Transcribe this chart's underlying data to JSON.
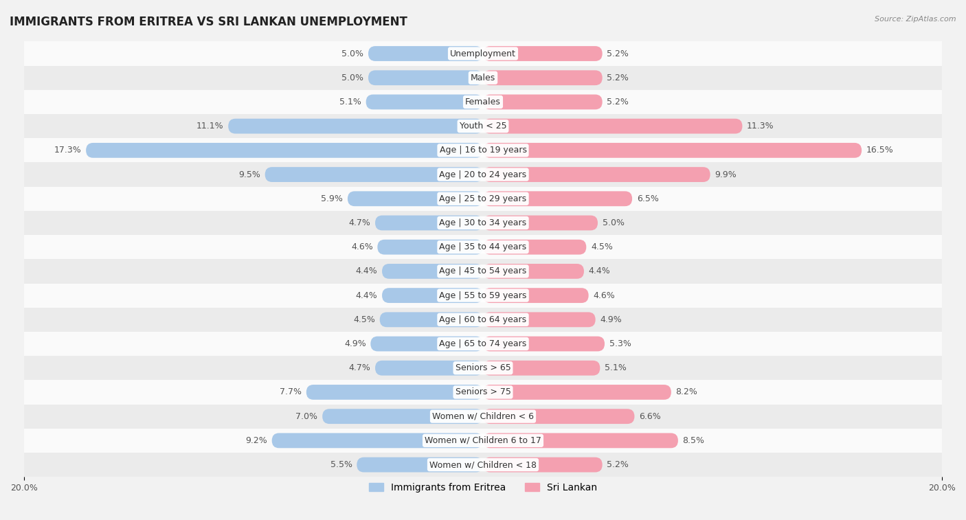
{
  "title": "IMMIGRANTS FROM ERITREA VS SRI LANKAN UNEMPLOYMENT",
  "source": "Source: ZipAtlas.com",
  "categories": [
    "Unemployment",
    "Males",
    "Females",
    "Youth < 25",
    "Age | 16 to 19 years",
    "Age | 20 to 24 years",
    "Age | 25 to 29 years",
    "Age | 30 to 34 years",
    "Age | 35 to 44 years",
    "Age | 45 to 54 years",
    "Age | 55 to 59 years",
    "Age | 60 to 64 years",
    "Age | 65 to 74 years",
    "Seniors > 65",
    "Seniors > 75",
    "Women w/ Children < 6",
    "Women w/ Children 6 to 17",
    "Women w/ Children < 18"
  ],
  "eritrea_values": [
    5.0,
    5.0,
    5.1,
    11.1,
    17.3,
    9.5,
    5.9,
    4.7,
    4.6,
    4.4,
    4.4,
    4.5,
    4.9,
    4.7,
    7.7,
    7.0,
    9.2,
    5.5
  ],
  "srilankan_values": [
    5.2,
    5.2,
    5.2,
    11.3,
    16.5,
    9.9,
    6.5,
    5.0,
    4.5,
    4.4,
    4.6,
    4.9,
    5.3,
    5.1,
    8.2,
    6.6,
    8.5,
    5.2
  ],
  "eritrea_color": "#a8c8e8",
  "srilankan_color": "#f4a0b0",
  "max_value": 20.0,
  "bar_height": 0.62,
  "background_color": "#f2f2f2",
  "row_color_odd": "#fafafa",
  "row_color_even": "#ebebeb",
  "title_fontsize": 12,
  "label_fontsize": 9,
  "value_fontsize": 9,
  "legend_fontsize": 10,
  "axis_label_fontsize": 9
}
